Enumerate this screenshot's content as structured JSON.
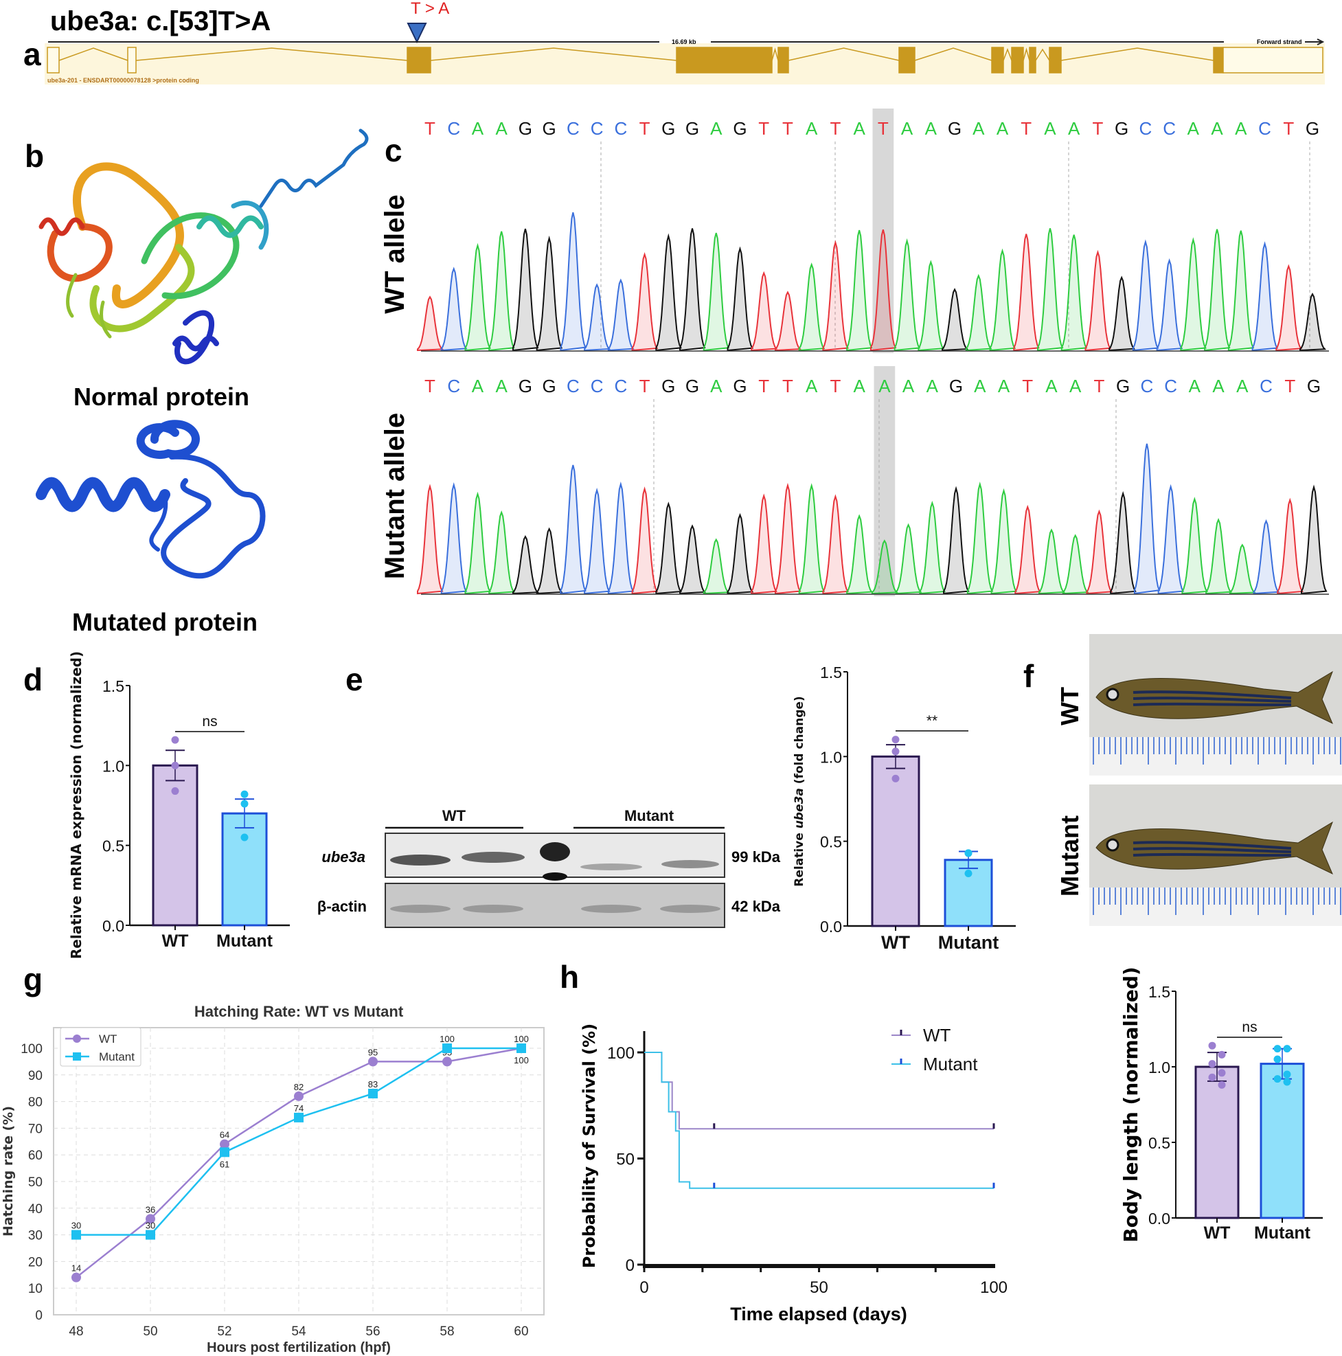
{
  "figure": {
    "panel_labels": {
      "a": "a",
      "b": "b",
      "c": "c",
      "d": "d",
      "e": "e",
      "f": "f",
      "g": "g",
      "h": "h"
    },
    "a": {
      "title": "ube3a: c.[53]T>A",
      "mutation": "T > A",
      "scale": "16.69 kb",
      "strand": "Forward strand",
      "transcript": "ube3a-201 - ENSDART00000078128 >protein coding",
      "colors": {
        "exon": "#c9991f",
        "background": "#fdf6dc",
        "marker": "#3a6fc4",
        "mutation_text": "#e02020"
      }
    },
    "b": {
      "normal_label": "Normal protein",
      "mutated_label": "Mutated protein"
    },
    "c": {
      "wt_label": "WT allele",
      "mutant_label": "Mutant allele",
      "wt_sequence": "TCAAGGCCCTGGAGTTATATAAGAATAATGCCAAACTG",
      "mutant_sequence": "TCAAGGCCCTGGAGTTATAAAAGAATAATGCCAAACTG",
      "highlight_index": 19,
      "base_colors": {
        "A": "#2ecc40",
        "C": "#3a6fdc",
        "G": "#111111",
        "T": "#e8333a"
      }
    },
    "e_blot": {
      "group_wt": "WT",
      "group_mutant": "Mutant",
      "row1": "ube3a",
      "row2": "β-actin",
      "size1": "99 kDa",
      "size2": "42 kDa"
    },
    "f": {
      "wt_label": "WT",
      "mutant_label": "Mutant"
    }
  },
  "chart_data": [
    {
      "panel": "d",
      "type": "bar",
      "categories": [
        "WT",
        "Mutant"
      ],
      "values": [
        1.0,
        0.7
      ],
      "sem": [
        0.095,
        0.09
      ],
      "points": [
        [
          1.16,
          1.0,
          0.84
        ],
        [
          0.82,
          0.76,
          0.55
        ]
      ],
      "ylabel": "Relative mRNA expression (normalized)",
      "ylim": [
        0,
        1.5
      ],
      "yticks": [
        "0.0",
        "0.5",
        "1.0",
        "1.5"
      ],
      "annotation": "ns",
      "colors": {
        "WT_fill": "#d4c4e8",
        "WT_edge": "#2a1850",
        "WT_dot": "#9b7fd0",
        "Mutant_fill": "#8fe0fa",
        "Mutant_edge": "#1d4fd8",
        "Mutant_dot": "#1ec0f0"
      }
    },
    {
      "panel": "e",
      "type": "bar",
      "categories": [
        "WT",
        "Mutant"
      ],
      "values": [
        1.0,
        0.39
      ],
      "sem": [
        0.07,
        0.05
      ],
      "points": [
        [
          1.1,
          1.03,
          0.87
        ],
        [
          0.43,
          0.43,
          0.31
        ]
      ],
      "ylabel_pre": "Relative ",
      "ylabel_italic": "ube3a",
      "ylabel_post": " (fold change)",
      "ylim": [
        0,
        1.5
      ],
      "yticks": [
        "0.0",
        "0.5",
        "1.0",
        "1.5"
      ],
      "annotation": "**",
      "colors": {
        "WT_fill": "#d4c4e8",
        "WT_edge": "#2a1850",
        "WT_dot": "#9b7fd0",
        "Mutant_fill": "#8fe0fa",
        "Mutant_edge": "#1d4fd8",
        "Mutant_dot": "#1ec0f0"
      }
    },
    {
      "panel": "g",
      "type": "line",
      "title": "Hatching Rate: WT vs Mutant",
      "xlabel": "Hours post fertilization (hpf)",
      "ylabel": "Hatching rate (%)",
      "x": [
        48,
        50,
        52,
        54,
        56,
        58,
        60
      ],
      "series": [
        {
          "name": "WT",
          "values": [
            14,
            36,
            64,
            82,
            95,
            95,
            100
          ],
          "color": "#9b7fd0",
          "marker": "circle"
        },
        {
          "name": "Mutant",
          "values": [
            30,
            30,
            61,
            74,
            83,
            100,
            100
          ],
          "color": "#1ec0f0",
          "marker": "square"
        }
      ],
      "xlim": [
        48,
        60
      ],
      "ylim": [
        0,
        100
      ],
      "xticks": [
        "48",
        "50",
        "52",
        "54",
        "56",
        "58",
        "60"
      ],
      "yticks": [
        "0",
        "10",
        "20",
        "30",
        "40",
        "50",
        "60",
        "70",
        "80",
        "90",
        "100"
      ],
      "grid": true,
      "legend": "top-left",
      "data_labels": true
    },
    {
      "panel": "h",
      "type": "line",
      "subtype": "survival-step",
      "xlabel": "Time elapsed (days)",
      "ylabel": "Probability of Survival (%)",
      "series": [
        {
          "name": "WT",
          "steps": [
            [
              0,
              100
            ],
            [
              5,
              86
            ],
            [
              8,
              72
            ],
            [
              10,
              64
            ],
            [
              100,
              64
            ]
          ],
          "censored": [
            20,
            100
          ],
          "color": "#9b86c8"
        },
        {
          "name": "Mutant",
          "steps": [
            [
              0,
              100
            ],
            [
              5,
              86
            ],
            [
              7,
              72
            ],
            [
              9,
              63
            ],
            [
              10,
              39
            ],
            [
              13,
              36
            ],
            [
              100,
              36
            ]
          ],
          "censored": [
            20,
            100
          ],
          "color": "#3cc0e8"
        }
      ],
      "xlim": [
        0,
        100
      ],
      "ylim": [
        0,
        100
      ],
      "xticks": [
        "0",
        "50",
        "100"
      ],
      "yticks": [
        "0",
        "50",
        "100"
      ],
      "legend": "top-right"
    },
    {
      "panel": "h",
      "type": "bar",
      "categories": [
        "WT",
        "Mutant"
      ],
      "values": [
        1.0,
        1.02
      ],
      "sd": [
        0.095,
        0.1
      ],
      "points": [
        [
          1.14,
          1.08,
          1.02,
          0.96,
          0.93,
          0.88
        ],
        [
          1.12,
          1.12,
          1.05,
          0.95,
          0.92,
          0.9
        ]
      ],
      "ylabel": "Body length (normalized)",
      "ylim": [
        0,
        1.5
      ],
      "yticks": [
        "0.0",
        "0.5",
        "1.0",
        "1.5"
      ],
      "annotation": "ns",
      "colors": {
        "WT_fill": "#d4c4e8",
        "WT_edge": "#2a1850",
        "WT_dot": "#9b7fd0",
        "Mutant_fill": "#8fe0fa",
        "Mutant_edge": "#1d4fd8",
        "Mutant_dot": "#1ec0f0"
      }
    }
  ]
}
